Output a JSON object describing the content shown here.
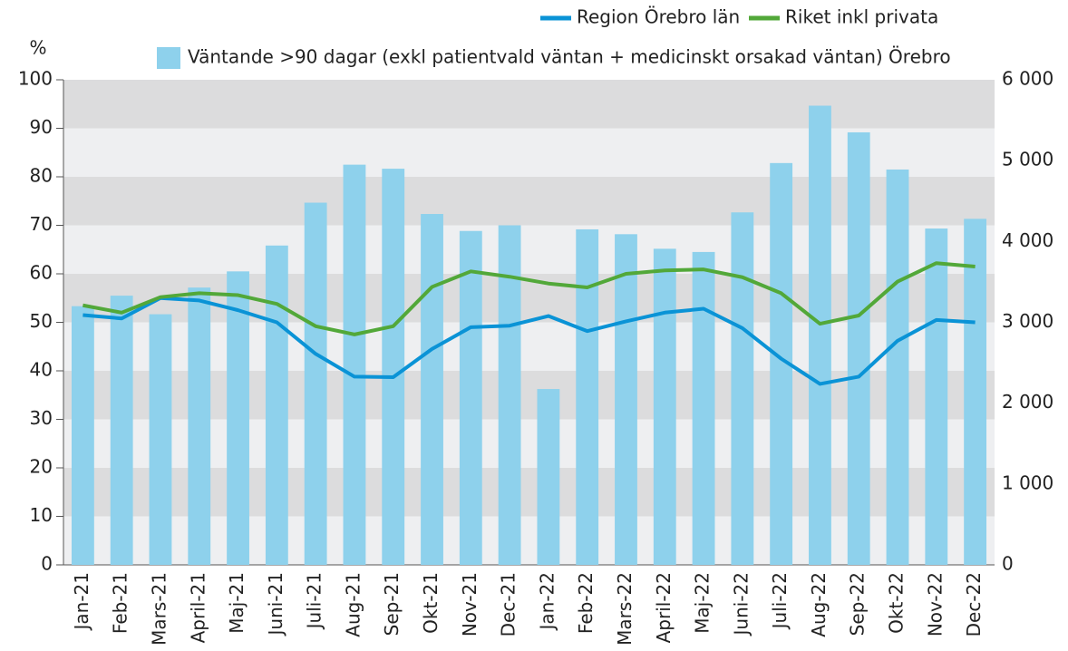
{
  "chart_data": {
    "type": "bar-line",
    "ylabel": "%",
    "categories": [
      "Jan-21",
      "Feb-21",
      "Mars-21",
      "April-21",
      "Maj-21",
      "Juni-21",
      "Juli-21",
      "Aug-21",
      "Sep-21",
      "Okt-21",
      "Nov-21",
      "Dec-21",
      "Jan-22",
      "Feb-22",
      "Mars-22",
      "April-22",
      "Maj-22",
      "Juni-22",
      "Juli-22",
      "Aug-22",
      "Sep-22",
      "Okt-22",
      "Nov-22",
      "Dec-22"
    ],
    "series": [
      {
        "name": "Väntande >90 dagar (exkl patientvald väntan + medicinskt orsakad väntan) Örebro",
        "type": "bar",
        "axis": "y2",
        "color": "#8ed1ec",
        "values": [
          3200,
          3330,
          3100,
          3430,
          3630,
          3950,
          4480,
          4950,
          4900,
          4340,
          4130,
          4200,
          2175,
          4150,
          4090,
          3910,
          3870,
          4360,
          4970,
          5680,
          5350,
          4890,
          4160,
          4280
        ]
      },
      {
        "name": "Region Örebro län",
        "type": "line",
        "color": "#0a93d6",
        "values": [
          51.5,
          50.8,
          55,
          54.5,
          52.5,
          50,
          43.5,
          38.8,
          38.7,
          44.5,
          49,
          49.3,
          51.3,
          48.2,
          50.2,
          52,
          52.8,
          48.8,
          42.5,
          37.3,
          38.8,
          46.2,
          50.5,
          50
        ]
      },
      {
        "name": "Riket inkl privata",
        "type": "line",
        "color": "#52a839",
        "values": [
          53.5,
          52,
          55.2,
          56,
          55.6,
          53.8,
          49.2,
          47.5,
          49.2,
          57.3,
          60.5,
          59.4,
          58,
          57.2,
          60,
          60.7,
          60.9,
          59.3,
          56,
          49.7,
          51.4,
          58.4,
          62.2,
          61.5
        ]
      }
    ],
    "ylim": [
      0,
      100
    ],
    "yticks": [
      0,
      10,
      20,
      30,
      40,
      50,
      60,
      70,
      80,
      90,
      100
    ],
    "y2lim": [
      0,
      6000
    ],
    "y2ticks": [
      0,
      {
        "value": 1000,
        "label": "1 000"
      },
      {
        "value": 2000,
        "label": "2 000"
      },
      {
        "value": 3000,
        "label": "3 000"
      },
      {
        "value": 4000,
        "label": "4 000"
      },
      {
        "value": 5000,
        "label": "5 000"
      },
      {
        "value": 6000,
        "label": "6 000"
      }
    ],
    "grid": true
  }
}
